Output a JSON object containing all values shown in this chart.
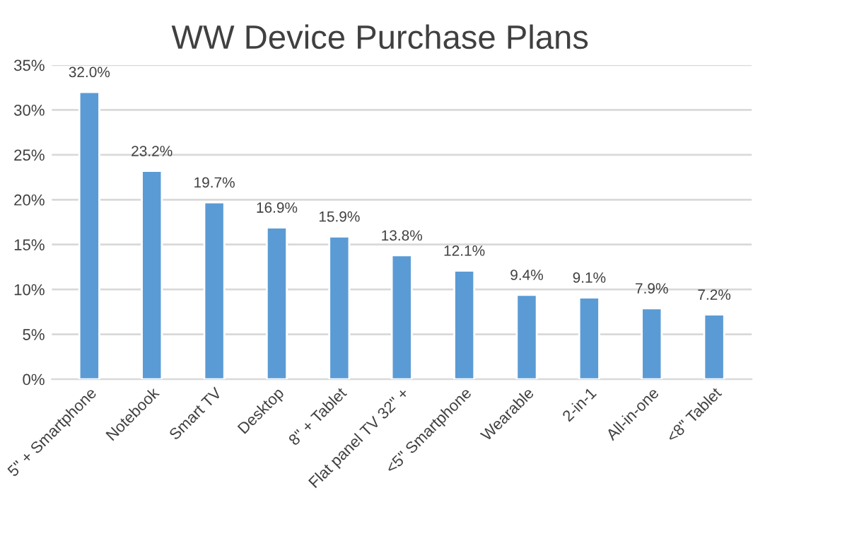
{
  "chart_data": {
    "type": "bar",
    "title": "WW Device Purchase Plans",
    "categories": [
      "5\" + Smartphone",
      "Notebook",
      "Smart TV",
      "Desktop",
      "8\" + Tablet",
      "Flat panel TV 32\" +",
      "<5\" Smartphone",
      "Wearable",
      "2-in-1",
      "All-in-one",
      "<8\" Tablet"
    ],
    "values": [
      32.0,
      23.2,
      19.7,
      16.9,
      15.9,
      13.8,
      12.1,
      9.4,
      9.1,
      7.9,
      7.2
    ],
    "value_labels": [
      "32.0%",
      "23.2%",
      "19.7%",
      "16.9%",
      "15.9%",
      "13.8%",
      "12.1%",
      "9.4%",
      "9.1%",
      "7.9%",
      "7.2%"
    ],
    "color": "#5b9bd5",
    "ylim": [
      0,
      35
    ],
    "yticks": [
      {
        "value": 0,
        "label": "0%"
      },
      {
        "value": 5,
        "label": "5%"
      },
      {
        "value": 10,
        "label": "10%"
      },
      {
        "value": 15,
        "label": "15%"
      },
      {
        "value": 20,
        "label": "20%"
      },
      {
        "value": 25,
        "label": "25%"
      },
      {
        "value": 30,
        "label": "30%"
      },
      {
        "value": 35,
        "label": "35%"
      }
    ],
    "grid": "y"
  }
}
